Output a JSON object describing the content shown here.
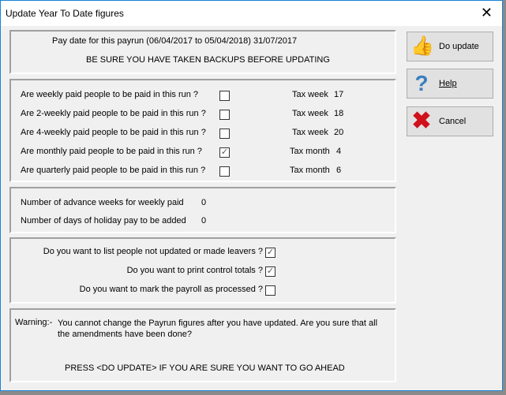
{
  "window": {
    "title": "Update Year To Date figures",
    "close_icon": "close-icon"
  },
  "header": {
    "pay_date": "Pay date for this payrun (06/04/2017 to 05/04/2018)   31/07/2017",
    "backup_warning": "BE SURE YOU HAVE TAKEN BACKUPS BEFORE UPDATING"
  },
  "pay_groups": [
    {
      "question": "Are weekly paid people to be paid in this run ?",
      "checked": false,
      "period_label": "Tax week",
      "period": "17"
    },
    {
      "question": "Are 2-weekly paid people to be paid in this run ?",
      "checked": false,
      "period_label": "Tax week",
      "period": "18"
    },
    {
      "question": "Are 4-weekly paid people to be paid in this run ?",
      "checked": false,
      "period_label": "Tax week",
      "period": "20"
    },
    {
      "question": "Are monthly paid people to be paid in this run ?",
      "checked": true,
      "period_label": "Tax month",
      "period": "4"
    },
    {
      "question": "Are quarterly paid people to be paid in this run ?",
      "checked": false,
      "period_label": "Tax month",
      "period": "6"
    }
  ],
  "advance": {
    "weeks_label": "Number of advance weeks for weekly paid",
    "weeks_value": "0",
    "holiday_label": "Number of days of holiday pay to be added",
    "holiday_value": "0"
  },
  "options": [
    {
      "label": "Do you want to list people not updated or made leavers ?",
      "checked": true
    },
    {
      "label": "Do you want to print control totals ?",
      "checked": true
    },
    {
      "label": "Do you want to mark the payroll as processed ?",
      "checked": false
    }
  ],
  "warning": {
    "prefix": "Warning:-",
    "text": "You cannot change the Payrun figures after you have updated.  Are you sure that all the amendments have been done?",
    "press": "PRESS <DO UPDATE> IF YOU ARE SURE YOU WANT TO GO AHEAD"
  },
  "buttons": {
    "do_update": "Do update",
    "help": "Help",
    "cancel": "Cancel"
  },
  "colors": {
    "window_border": "#1883d7",
    "thumb": "#f5d800",
    "help": "#3a7fc0",
    "cancel": "#d0101a"
  }
}
